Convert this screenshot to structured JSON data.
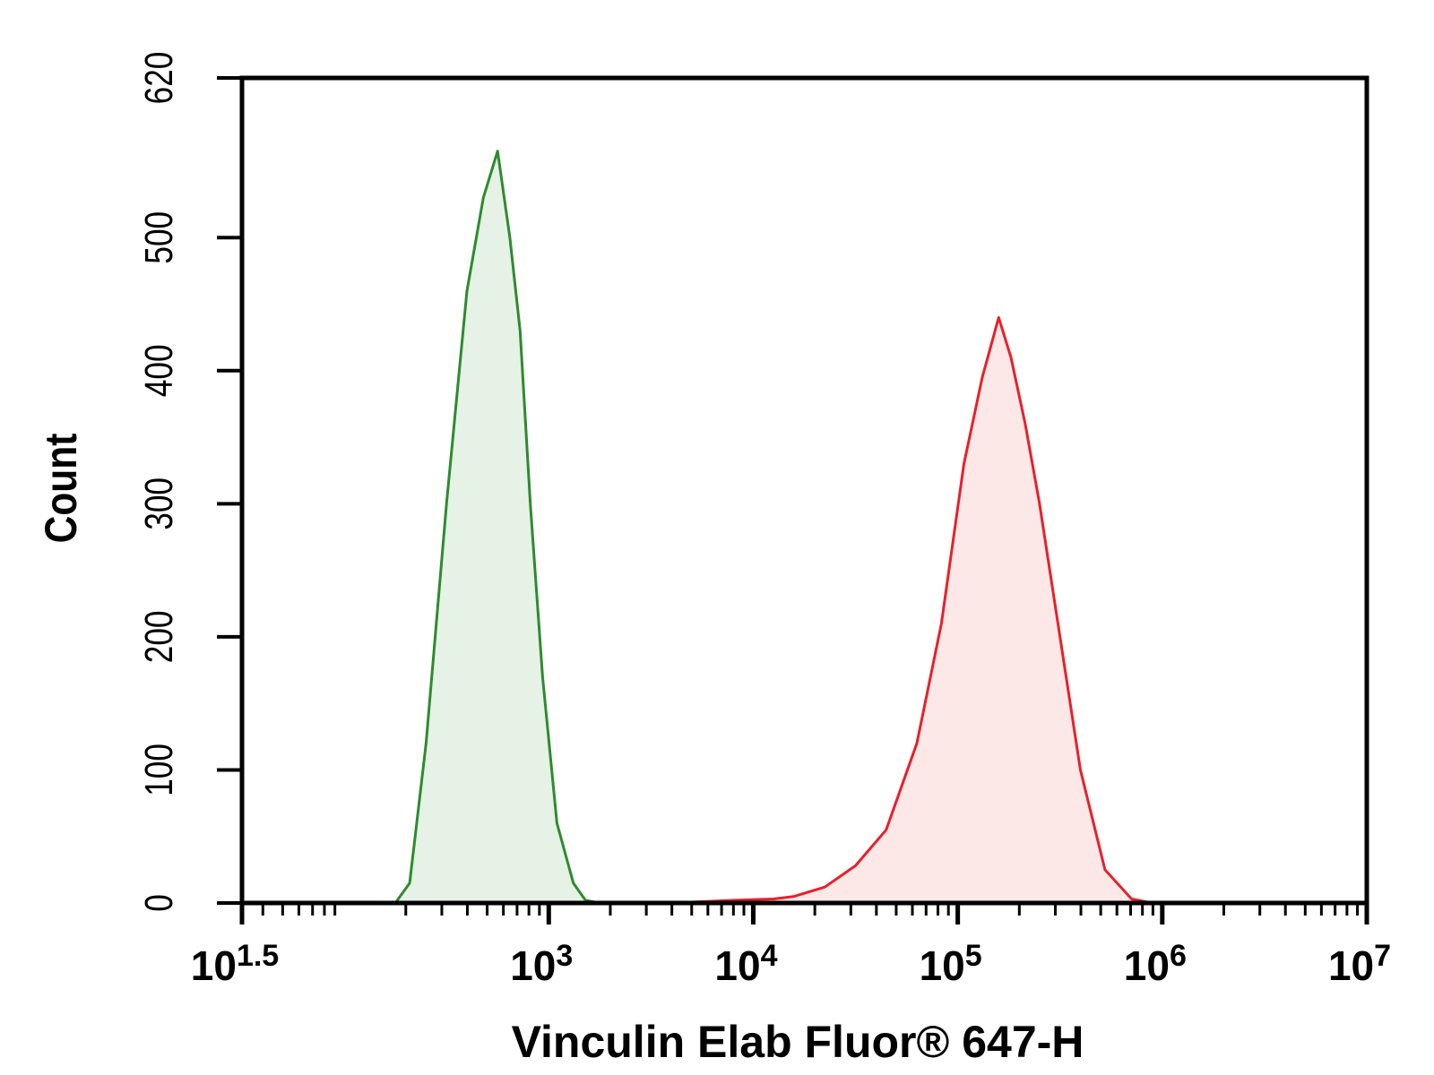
{
  "chart_data": {
    "type": "area",
    "title": "",
    "xlabel": "Vinculin Elab Fluor® 647-H",
    "ylabel": "Count",
    "x_scale": "log",
    "xlim": [
      1.5,
      7
    ],
    "ylim": [
      0,
      620
    ],
    "x_ticks": [
      {
        "exp": "1.5",
        "value": 1.5
      },
      {
        "exp": "3",
        "value": 3
      },
      {
        "exp": "4",
        "value": 4
      },
      {
        "exp": "5",
        "value": 5
      },
      {
        "exp": "6",
        "value": 6
      },
      {
        "exp": "7",
        "value": 7
      }
    ],
    "x_tick_base": "10",
    "y_ticks": [
      0,
      100,
      200,
      300,
      400,
      500,
      620
    ],
    "grid": false,
    "legend": "none",
    "series": [
      {
        "color": "#2e8b2e",
        "fill": "#e6f2e6",
        "x": [
          2.25,
          2.32,
          2.4,
          2.5,
          2.6,
          2.68,
          2.75,
          2.81,
          2.86,
          2.91,
          2.97,
          3.04,
          3.12,
          3.18,
          3.25
        ],
        "y": [
          0,
          15,
          120,
          300,
          460,
          530,
          565,
          500,
          430,
          300,
          170,
          60,
          15,
          2,
          0
        ]
      },
      {
        "color": "#e8202a",
        "fill": "#fde8e8",
        "x": [
          3.6,
          3.9,
          4.1,
          4.2,
          4.35,
          4.5,
          4.65,
          4.8,
          4.92,
          5.03,
          5.12,
          5.2,
          5.26,
          5.33,
          5.4,
          5.5,
          5.6,
          5.72,
          5.85,
          5.95
        ],
        "y": [
          0,
          2,
          3,
          5,
          12,
          28,
          55,
          120,
          210,
          330,
          395,
          440,
          410,
          360,
          300,
          200,
          100,
          25,
          3,
          0
        ]
      }
    ]
  }
}
